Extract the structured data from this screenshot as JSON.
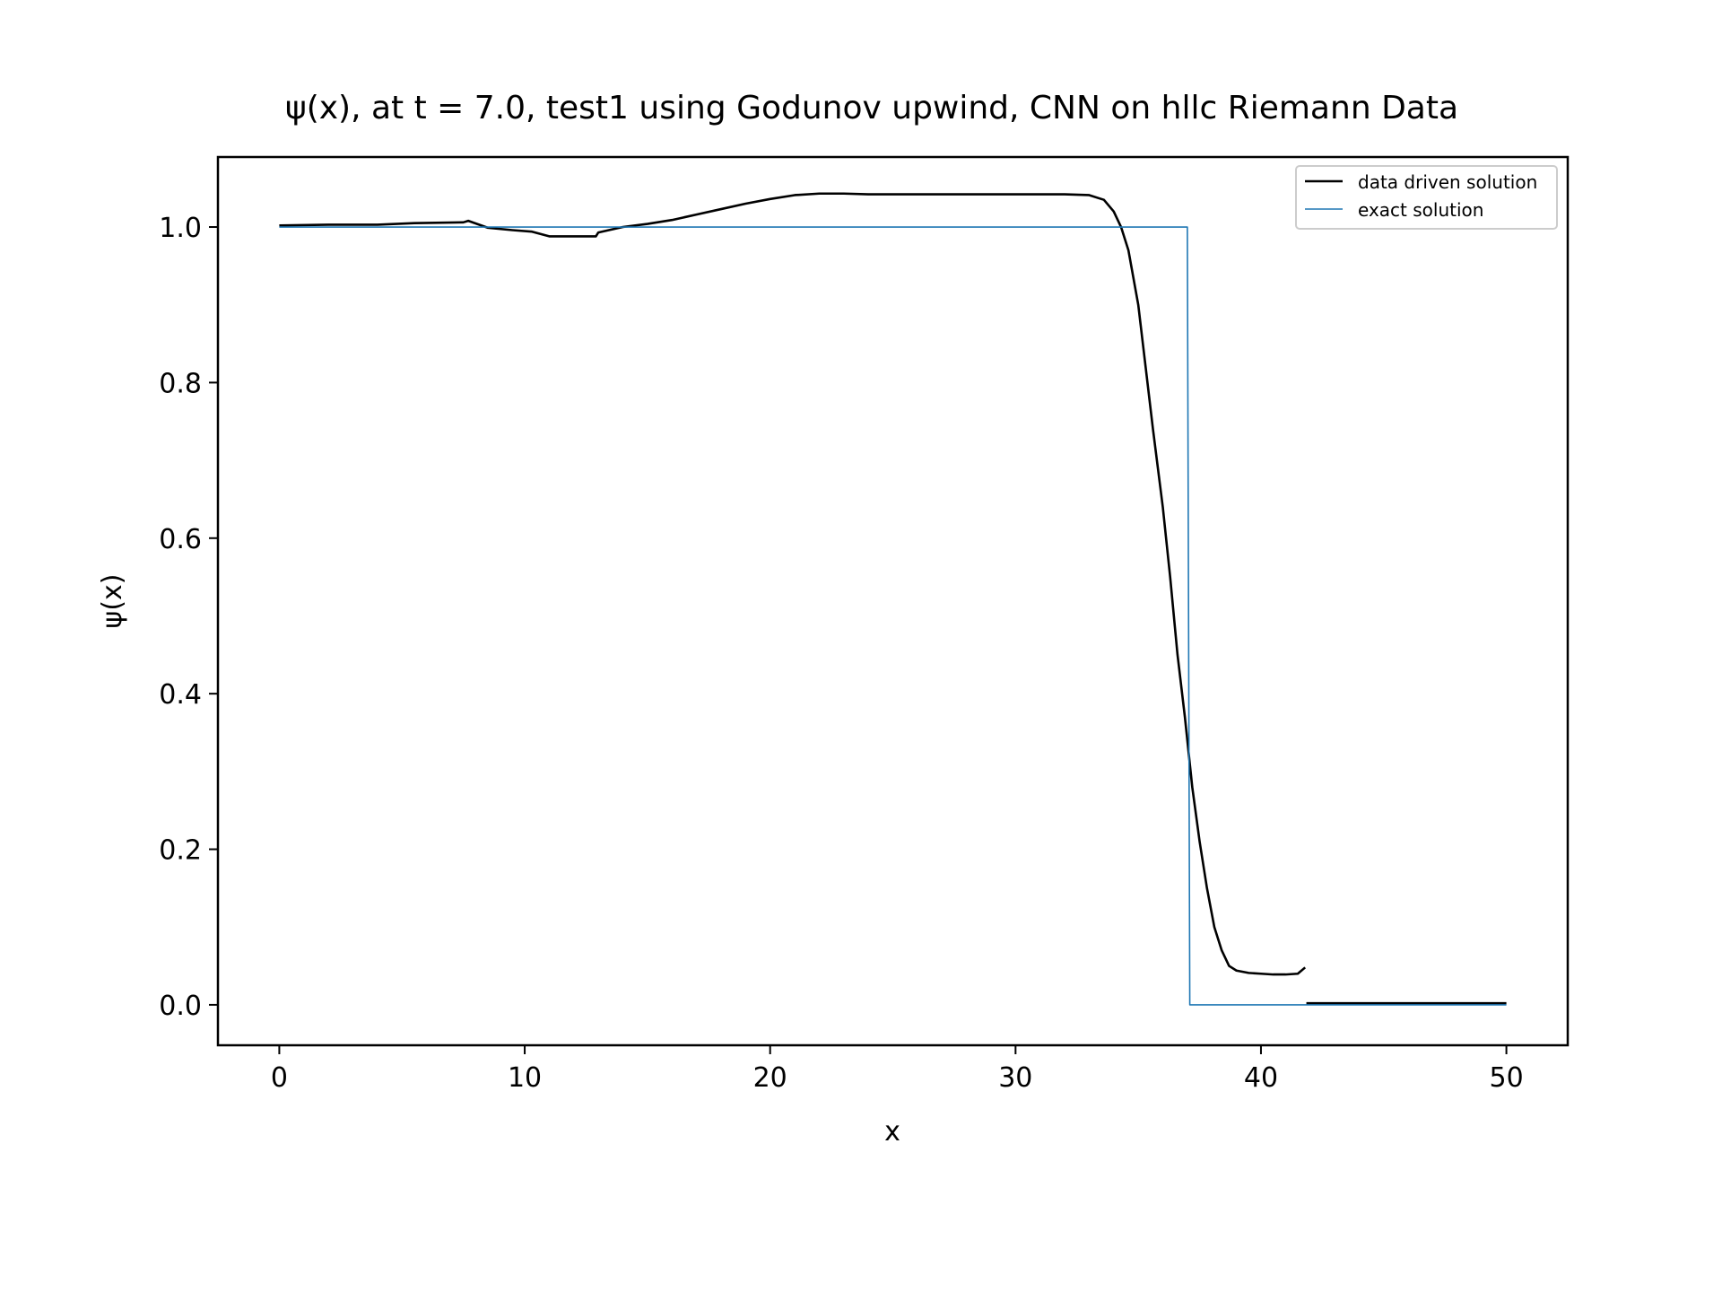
{
  "chart_data": {
    "type": "line",
    "title": "ψ(x), at t = 7.0, test1 using Godunov upwind, CNN on hllc Riemann Data",
    "xlabel": "x",
    "ylabel": "ψ(x)",
    "xlim": [
      -2.5,
      52.5
    ],
    "ylim": [
      -0.052,
      1.09
    ],
    "xticks": [
      0,
      10,
      20,
      30,
      40,
      50
    ],
    "xtick_labels": [
      "0",
      "10",
      "20",
      "30",
      "40",
      "50"
    ],
    "yticks": [
      0.0,
      0.2,
      0.4,
      0.6,
      0.8,
      1.0
    ],
    "ytick_labels": [
      "0.0",
      "0.2",
      "0.4",
      "0.6",
      "0.8",
      "1.0"
    ],
    "grid": false,
    "legend_position": "top-right",
    "series": [
      {
        "name": "data driven solution",
        "color": "#000000",
        "style": "solid",
        "x": [
          0,
          2,
          4,
          5.5,
          7.5,
          7.7,
          8.5,
          9.5,
          10.3,
          11,
          12,
          12.9,
          13,
          14,
          15,
          16,
          17,
          18,
          19,
          20,
          21,
          22,
          23,
          24,
          26,
          28,
          30,
          32,
          33,
          33.6,
          34,
          34.3,
          34.6,
          35,
          35.3,
          35.6,
          36,
          36.3,
          36.6,
          36.9,
          37.2,
          37.5,
          37.8,
          38.1,
          38.4,
          38.7,
          39,
          39.5,
          40,
          40.5,
          41,
          41.5,
          41.8,
          41.85,
          44,
          47,
          50
        ],
        "y": [
          1.002,
          1.003,
          1.003,
          1.005,
          1.006,
          1.008,
          0.999,
          0.996,
          0.994,
          0.988,
          0.988,
          0.988,
          0.993,
          1.0,
          1.004,
          1.009,
          1.016,
          1.023,
          1.03,
          1.036,
          1.041,
          1.043,
          1.043,
          1.042,
          1.042,
          1.042,
          1.042,
          1.042,
          1.041,
          1.035,
          1.02,
          1.0,
          0.97,
          0.9,
          0.82,
          0.74,
          0.64,
          0.55,
          0.45,
          0.37,
          0.28,
          0.21,
          0.15,
          0.1,
          0.07,
          0.05,
          0.044,
          0.041,
          0.04,
          0.039,
          0.039,
          0.04,
          0.048,
          0.002,
          0.002,
          0.002,
          0.002
        ]
      },
      {
        "name": "exact solution",
        "color": "#1f77b4",
        "style": "solid",
        "x": [
          0,
          37.0,
          37.1,
          50
        ],
        "y": [
          1.0,
          1.0,
          0.0,
          0.0
        ]
      }
    ]
  }
}
